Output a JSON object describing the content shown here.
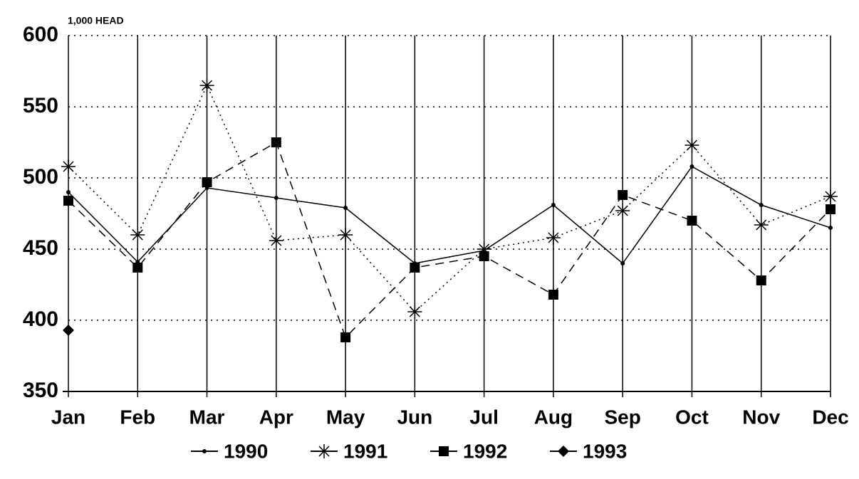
{
  "chart_data": {
    "type": "line",
    "y_label": "1,000 HEAD",
    "categories": [
      "Jan",
      "Feb",
      "Mar",
      "Apr",
      "May",
      "Jun",
      "Jul",
      "Aug",
      "Sep",
      "Oct",
      "Nov",
      "Dec"
    ],
    "series": [
      {
        "name": "1990",
        "color": "#000000",
        "marker": "dot",
        "dash": "solid",
        "values": [
          490,
          441,
          493,
          486,
          479,
          440,
          449,
          481,
          440,
          508,
          481,
          465
        ]
      },
      {
        "name": "1991",
        "color": "#000000",
        "marker": "asterisk",
        "dash": "dotted",
        "values": [
          508,
          460,
          565,
          456,
          460,
          406,
          450,
          458,
          477,
          523,
          467,
          487
        ]
      },
      {
        "name": "1992",
        "color": "#000000",
        "marker": "square",
        "dash": "dashed",
        "values": [
          484,
          437,
          497,
          525,
          388,
          437,
          445,
          418,
          488,
          470,
          428,
          478
        ]
      },
      {
        "name": "1993",
        "color": "#000000",
        "marker": "diamond",
        "dash": "solid",
        "values": [
          393,
          null,
          null,
          null,
          null,
          null,
          null,
          null,
          null,
          null,
          null,
          null
        ]
      }
    ],
    "ylim": [
      350,
      600
    ],
    "yticks": [
      350,
      400,
      450,
      500,
      550,
      600
    ],
    "grid": true
  }
}
